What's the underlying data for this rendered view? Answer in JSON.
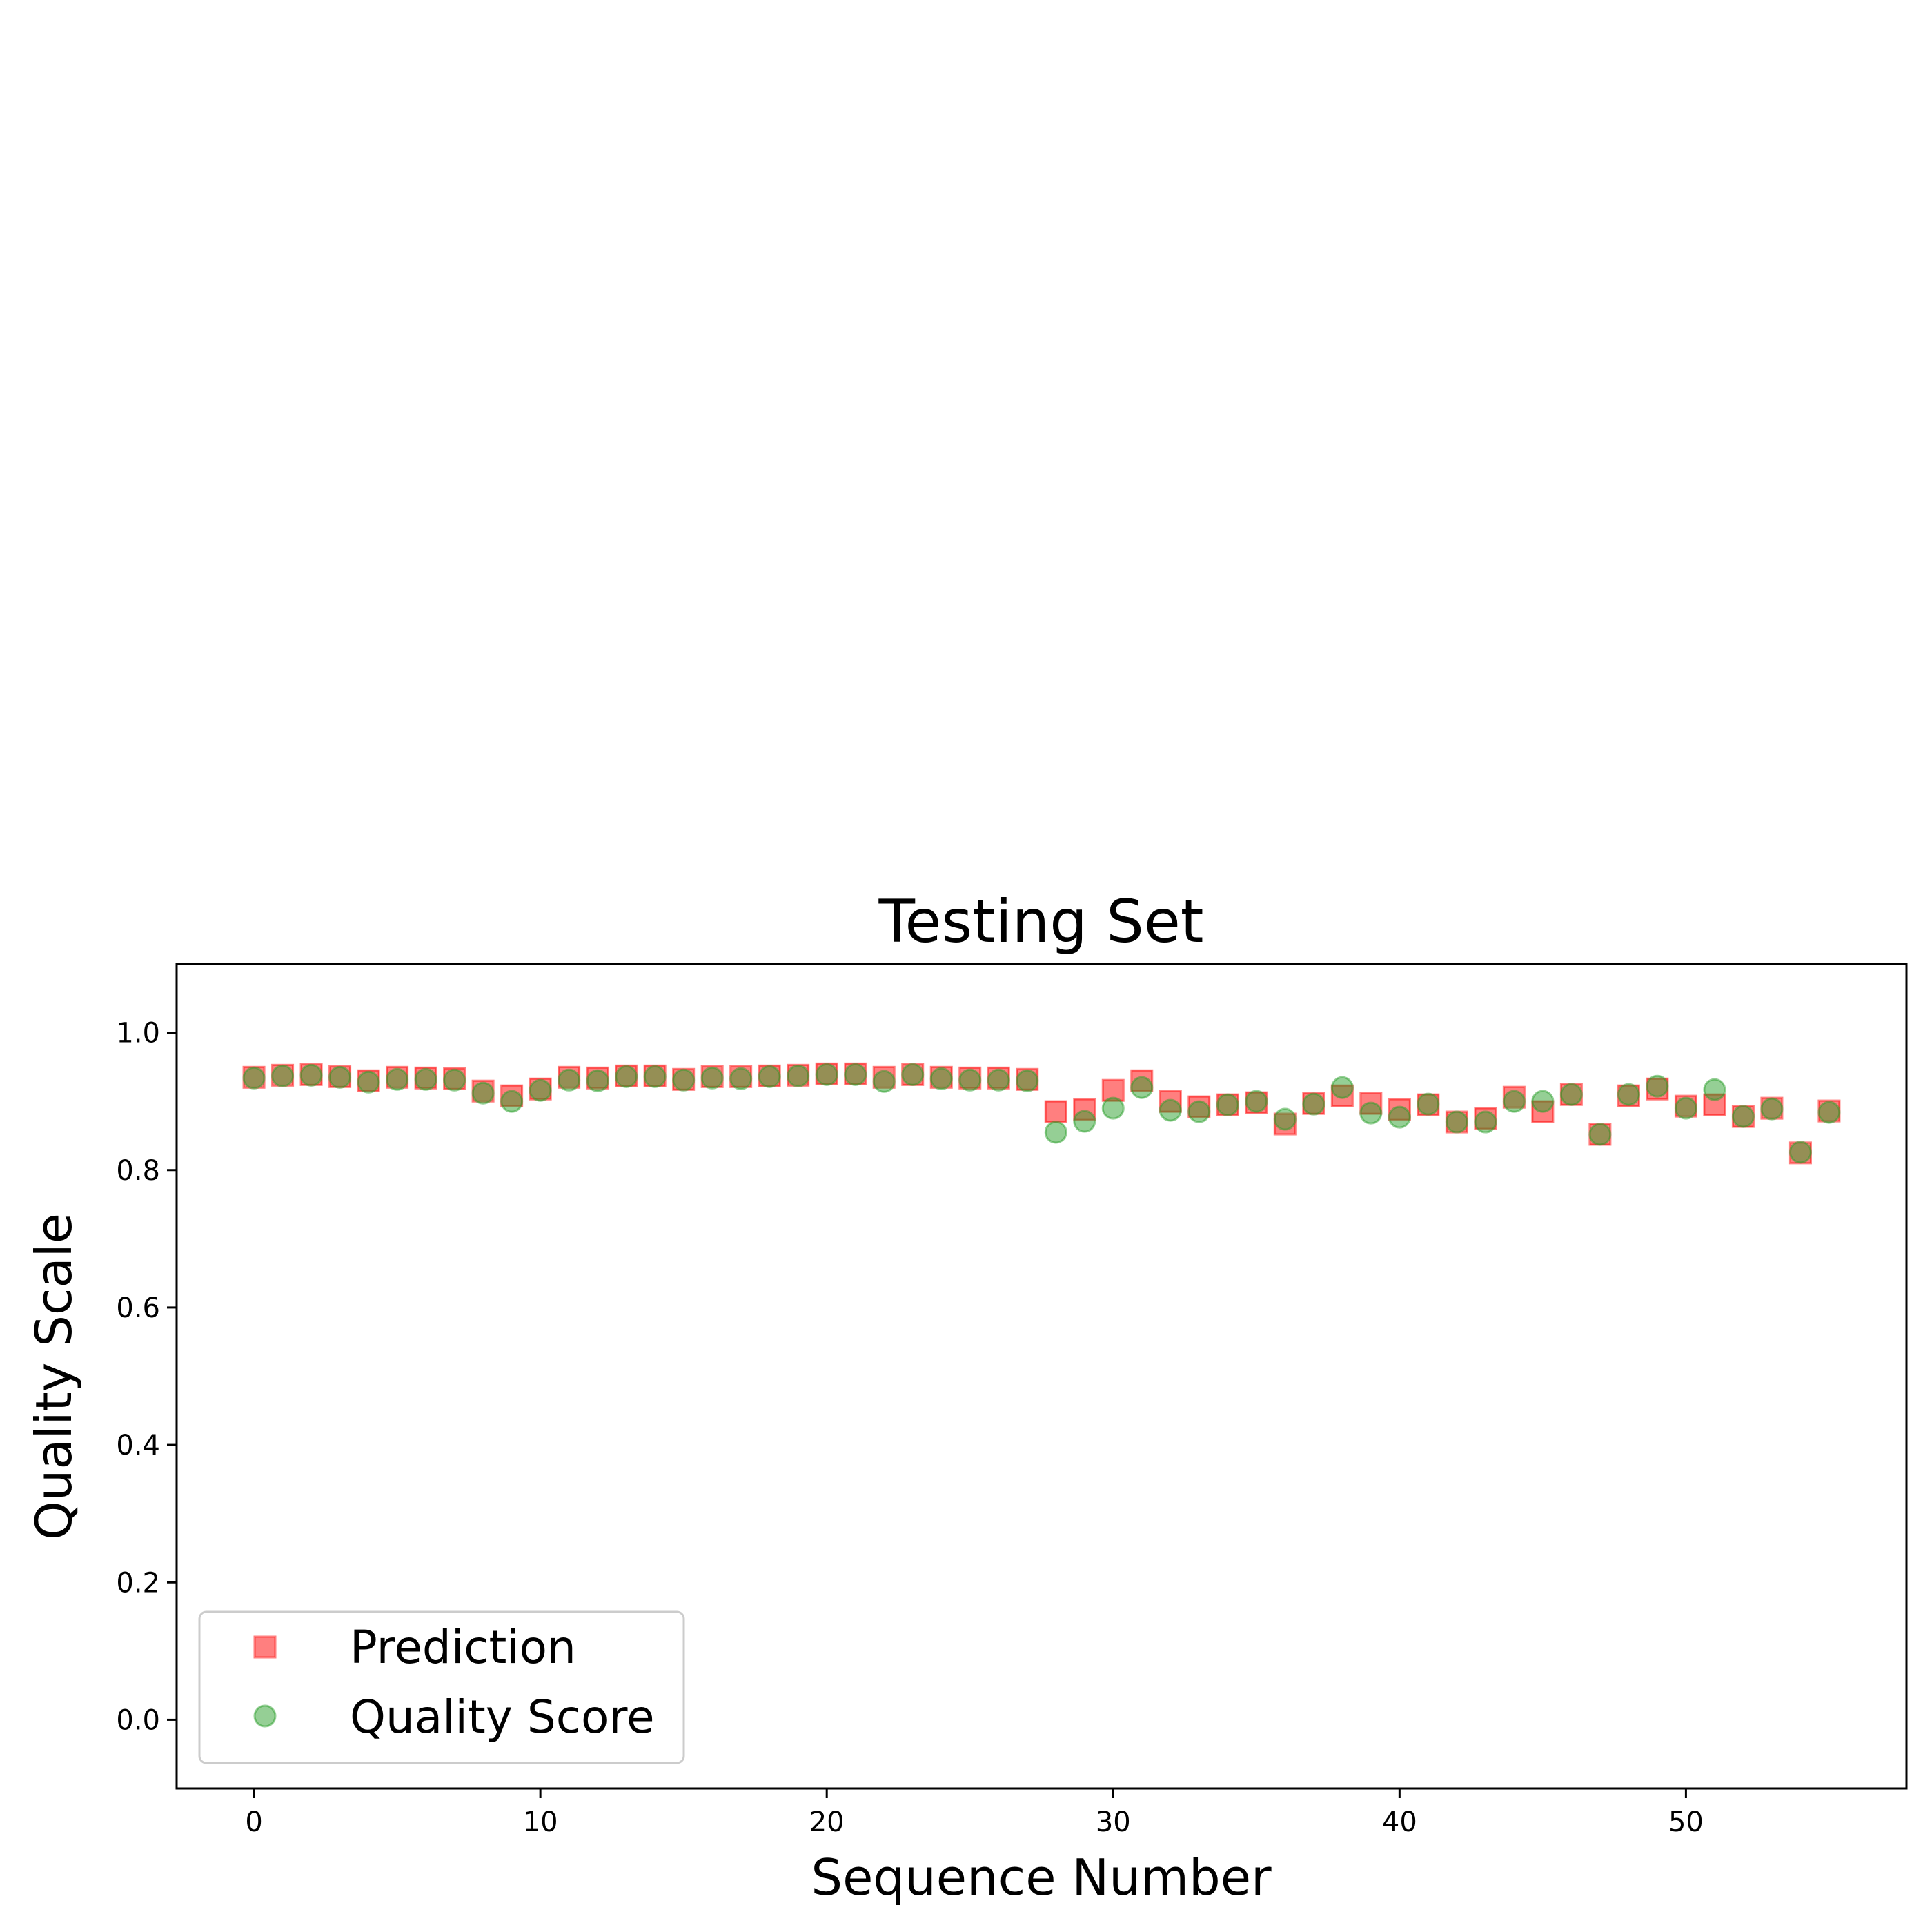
{
  "chart_data": {
    "type": "scatter",
    "title": "Testing Set",
    "xlabel": "Sequence Number",
    "ylabel": "Quality Scale",
    "xlim": [
      -2.7,
      57.7
    ],
    "ylim": [
      -0.1,
      1.1
    ],
    "x_ticks": [
      0,
      10,
      20,
      30,
      40,
      50
    ],
    "x_tick_labels": [
      "0",
      "10",
      "20",
      "30",
      "40",
      "50"
    ],
    "y_ticks": [
      0.0,
      0.2,
      0.4,
      0.6,
      0.8,
      1.0
    ],
    "y_tick_labels": [
      "0.0",
      "0.2",
      "0.4",
      "0.6",
      "0.8",
      "1.0"
    ],
    "grid": false,
    "legend_position": "lower-left",
    "x": [
      0,
      1,
      2,
      3,
      4,
      5,
      6,
      7,
      8,
      9,
      10,
      11,
      12,
      13,
      14,
      15,
      16,
      17,
      18,
      19,
      20,
      21,
      22,
      23,
      24,
      25,
      26,
      27,
      28,
      29,
      30,
      31,
      32,
      33,
      34,
      35,
      36,
      37,
      38,
      39,
      40,
      41,
      42,
      43,
      44,
      45,
      46,
      47,
      48,
      49,
      50,
      51,
      52,
      53,
      54,
      55
    ],
    "series": [
      {
        "name": "Prediction",
        "marker": "square",
        "color": "#ff0000",
        "values": [
          0.935,
          0.938,
          0.939,
          0.936,
          0.93,
          0.935,
          0.934,
          0.933,
          0.915,
          0.908,
          0.918,
          0.935,
          0.934,
          0.937,
          0.937,
          0.932,
          0.936,
          0.936,
          0.937,
          0.938,
          0.94,
          0.94,
          0.935,
          0.939,
          0.935,
          0.934,
          0.934,
          0.932,
          0.885,
          0.888,
          0.916,
          0.93,
          0.9,
          0.892,
          0.895,
          0.898,
          0.867,
          0.897,
          0.908,
          0.897,
          0.888,
          0.895,
          0.87,
          0.875,
          0.906,
          0.885,
          0.91,
          0.852,
          0.908,
          0.918,
          0.893,
          0.895,
          0.878,
          0.89,
          0.825,
          0.886
        ]
      },
      {
        "name": "Quality Score",
        "marker": "circle",
        "color": "#2ca02c",
        "values": [
          0.934,
          0.937,
          0.938,
          0.935,
          0.928,
          0.932,
          0.932,
          0.931,
          0.912,
          0.9,
          0.916,
          0.931,
          0.93,
          0.936,
          0.936,
          0.931,
          0.934,
          0.933,
          0.936,
          0.937,
          0.939,
          0.939,
          0.929,
          0.939,
          0.933,
          0.931,
          0.931,
          0.93,
          0.855,
          0.871,
          0.89,
          0.92,
          0.887,
          0.885,
          0.895,
          0.9,
          0.874,
          0.896,
          0.92,
          0.883,
          0.877,
          0.896,
          0.87,
          0.87,
          0.9,
          0.9,
          0.91,
          0.852,
          0.91,
          0.922,
          0.89,
          0.917,
          0.878,
          0.889,
          0.826,
          0.884
        ]
      }
    ]
  }
}
